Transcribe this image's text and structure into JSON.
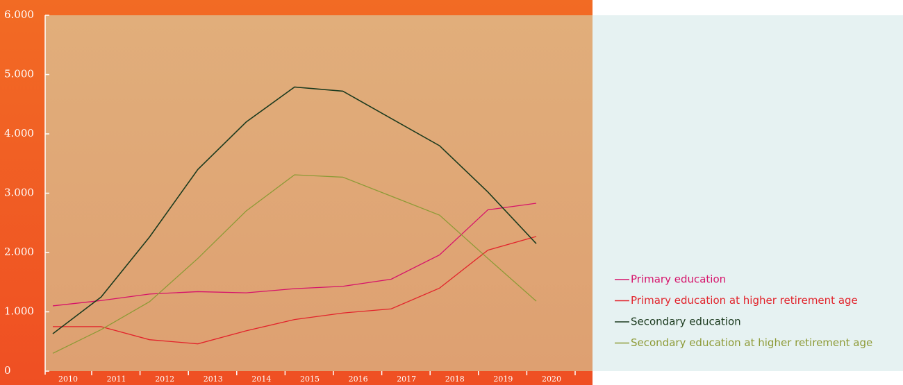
{
  "chart_data": {
    "type": "line",
    "categories": [
      "2010",
      "2011",
      "2012",
      "2013",
      "2014",
      "2015",
      "2016",
      "2017",
      "2018",
      "2019",
      "2020"
    ],
    "series": [
      {
        "name": "Primary education",
        "color": "#d6126a",
        "values": [
          1100,
          1190,
          1300,
          1340,
          1320,
          1390,
          1430,
          1550,
          1960,
          2720,
          2830
        ]
      },
      {
        "name": "Primary education at higher retirement age",
        "color": "#e2232b",
        "values": [
          750,
          750,
          530,
          460,
          680,
          870,
          980,
          1050,
          1400,
          2040,
          2270
        ]
      },
      {
        "name": "Secondary education",
        "color": "#1b3a1e",
        "values": [
          630,
          1250,
          2260,
          3400,
          4200,
          4790,
          4720,
          4260,
          3800,
          3020,
          2150
        ]
      },
      {
        "name": "Secondary education at higher retirement age",
        "color": "#8d9a36",
        "values": [
          300,
          700,
          1170,
          1900,
          2700,
          3310,
          3270,
          2950,
          2630,
          1900,
          1180
        ]
      }
    ],
    "ylim": [
      0,
      6000
    ],
    "yticks": [
      0,
      {
        "value": 1000,
        "label": "1.000"
      },
      {
        "value": 2000,
        "label": "2.000"
      },
      {
        "value": 3000,
        "label": "3.000"
      },
      {
        "value": 4000,
        "label": "4.000"
      },
      {
        "value": 5000,
        "label": "5.000"
      },
      {
        "value": 6000,
        "label": "6.000"
      }
    ],
    "legend": "right"
  }
}
